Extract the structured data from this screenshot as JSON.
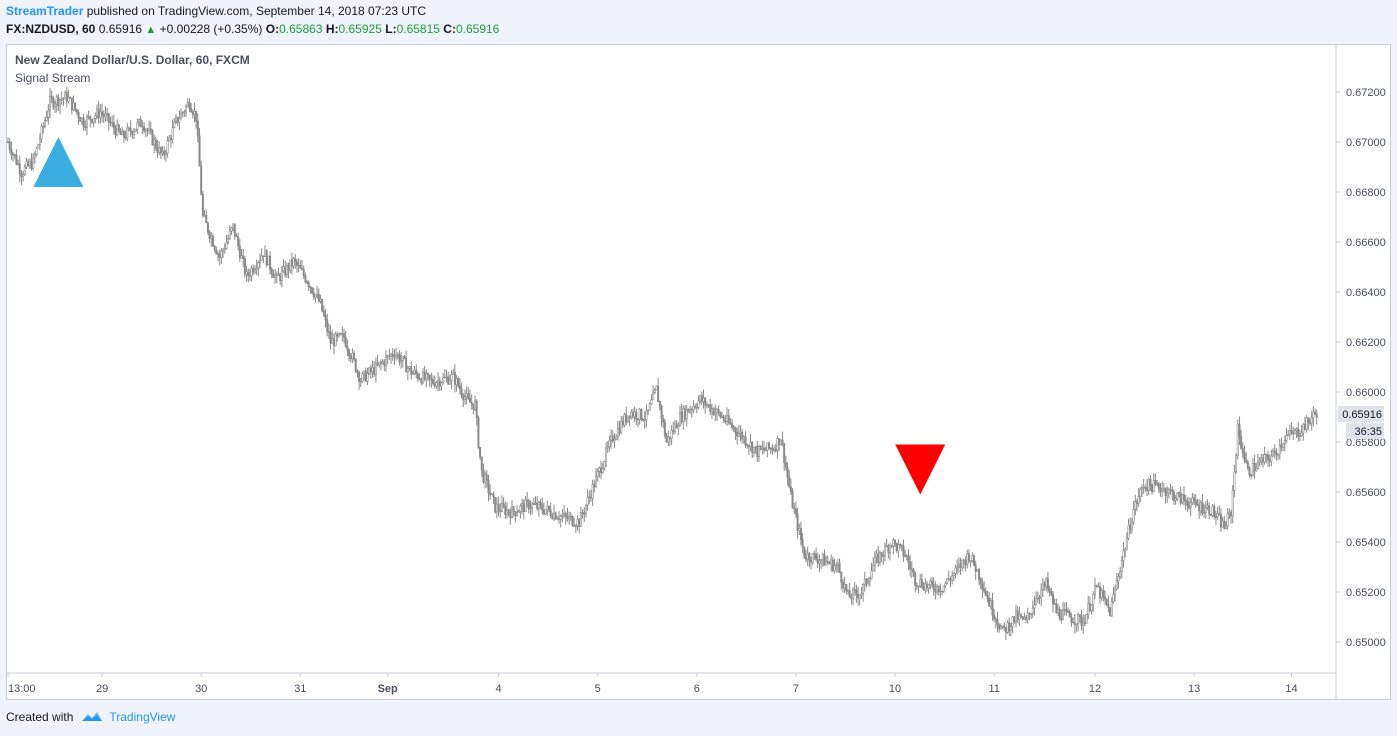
{
  "header": {
    "author": "StreamTrader",
    "published_text": "published on TradingView.com, September 14, 2018 07:23 UTC",
    "symbol": "FX:NZDUSD, 60",
    "last": "0.65916",
    "change": "+0.00228 (+0.35%)",
    "o_label": "O:",
    "o_value": "0.65863",
    "h_label": "H:",
    "h_value": "0.65925",
    "l_label": "L:",
    "l_value": "0.65815",
    "c_label": "C:",
    "c_value": "0.65916"
  },
  "legend": {
    "title": "New Zealand Dollar/U.S. Dollar, 60, FXCM",
    "indicator": "Signal Stream"
  },
  "footer": {
    "created_with": "Created with",
    "brand": "TradingView"
  },
  "colors": {
    "candle": "#8a8a8a",
    "buy_signal": "#3aaee0",
    "sell_signal": "#ff0000"
  },
  "chart_data": {
    "type": "candlestick",
    "symbol": "FX:NZDUSD",
    "interval": "60",
    "x_tick_labels": [
      "13:00",
      "29",
      "30",
      "31",
      "Sep",
      "4",
      "5",
      "6",
      "7",
      "10",
      "11",
      "12",
      "13",
      "14"
    ],
    "y_tick_labels": [
      "0.67200",
      "0.67000",
      "0.66800",
      "0.66600",
      "0.66400",
      "0.66200",
      "0.66000",
      "0.65800",
      "0.65600",
      "0.65400",
      "0.65200",
      "0.65000"
    ],
    "y_ticks": [
      0.672,
      0.67,
      0.668,
      0.666,
      0.664,
      0.662,
      0.66,
      0.658,
      0.656,
      0.654,
      0.652,
      0.65
    ],
    "ylim": [
      0.6486,
      0.674
    ],
    "last_price_label": "0.65916",
    "countdown_label": "36:35",
    "grid": false,
    "close_path": [
      {
        "x": 0,
        "y": 0.67
      },
      {
        "x": 8,
        "y": 0.6688
      },
      {
        "x": 15,
        "y": 0.6692
      },
      {
        "x": 25,
        "y": 0.6716
      },
      {
        "x": 35,
        "y": 0.6718
      },
      {
        "x": 45,
        "y": 0.6708
      },
      {
        "x": 55,
        "y": 0.6712
      },
      {
        "x": 68,
        "y": 0.6702
      },
      {
        "x": 80,
        "y": 0.6708
      },
      {
        "x": 92,
        "y": 0.6694
      },
      {
        "x": 100,
        "y": 0.6708
      },
      {
        "x": 108,
        "y": 0.6716
      },
      {
        "x": 112,
        "y": 0.671
      },
      {
        "x": 116,
        "y": 0.667
      },
      {
        "x": 126,
        "y": 0.6654
      },
      {
        "x": 134,
        "y": 0.6666
      },
      {
        "x": 142,
        "y": 0.6646
      },
      {
        "x": 152,
        "y": 0.6656
      },
      {
        "x": 160,
        "y": 0.6645
      },
      {
        "x": 170,
        "y": 0.6652
      },
      {
        "x": 178,
        "y": 0.6645
      },
      {
        "x": 186,
        "y": 0.6635
      },
      {
        "x": 192,
        "y": 0.662
      },
      {
        "x": 200,
        "y": 0.6622
      },
      {
        "x": 210,
        "y": 0.6605
      },
      {
        "x": 220,
        "y": 0.661
      },
      {
        "x": 230,
        "y": 0.6616
      },
      {
        "x": 240,
        "y": 0.6608
      },
      {
        "x": 252,
        "y": 0.6604
      },
      {
        "x": 265,
        "y": 0.6606
      },
      {
        "x": 274,
        "y": 0.6596
      },
      {
        "x": 278,
        "y": 0.6595
      },
      {
        "x": 280,
        "y": 0.658
      },
      {
        "x": 282,
        "y": 0.6568
      },
      {
        "x": 290,
        "y": 0.6554
      },
      {
        "x": 300,
        "y": 0.6552
      },
      {
        "x": 310,
        "y": 0.6555
      },
      {
        "x": 320,
        "y": 0.6553
      },
      {
        "x": 330,
        "y": 0.655
      },
      {
        "x": 340,
        "y": 0.6548
      },
      {
        "x": 350,
        "y": 0.6565
      },
      {
        "x": 360,
        "y": 0.6582
      },
      {
        "x": 370,
        "y": 0.6592
      },
      {
        "x": 380,
        "y": 0.659
      },
      {
        "x": 386,
        "y": 0.6601
      },
      {
        "x": 392,
        "y": 0.658
      },
      {
        "x": 400,
        "y": 0.659
      },
      {
        "x": 412,
        "y": 0.6597
      },
      {
        "x": 425,
        "y": 0.659
      },
      {
        "x": 436,
        "y": 0.6583
      },
      {
        "x": 446,
        "y": 0.6576
      },
      {
        "x": 456,
        "y": 0.6578
      },
      {
        "x": 460,
        "y": 0.6582
      },
      {
        "x": 466,
        "y": 0.6558
      },
      {
        "x": 474,
        "y": 0.6535
      },
      {
        "x": 484,
        "y": 0.6533
      },
      {
        "x": 494,
        "y": 0.653
      },
      {
        "x": 500,
        "y": 0.6518
      },
      {
        "x": 508,
        "y": 0.652
      },
      {
        "x": 516,
        "y": 0.6532
      },
      {
        "x": 526,
        "y": 0.654
      },
      {
        "x": 534,
        "y": 0.6535
      },
      {
        "x": 540,
        "y": 0.6525
      },
      {
        "x": 548,
        "y": 0.6522
      },
      {
        "x": 556,
        "y": 0.6522
      },
      {
        "x": 564,
        "y": 0.6528
      },
      {
        "x": 572,
        "y": 0.6535
      },
      {
        "x": 578,
        "y": 0.6527
      },
      {
        "x": 584,
        "y": 0.6516
      },
      {
        "x": 592,
        "y": 0.6504
      },
      {
        "x": 600,
        "y": 0.651
      },
      {
        "x": 606,
        "y": 0.6508
      },
      {
        "x": 612,
        "y": 0.6518
      },
      {
        "x": 618,
        "y": 0.6523
      },
      {
        "x": 624,
        "y": 0.6512
      },
      {
        "x": 632,
        "y": 0.651
      },
      {
        "x": 640,
        "y": 0.6508
      },
      {
        "x": 648,
        "y": 0.6522
      },
      {
        "x": 656,
        "y": 0.6512
      },
      {
        "x": 662,
        "y": 0.653
      },
      {
        "x": 670,
        "y": 0.6553
      },
      {
        "x": 676,
        "y": 0.6563
      },
      {
        "x": 686,
        "y": 0.6562
      },
      {
        "x": 696,
        "y": 0.6558
      },
      {
        "x": 706,
        "y": 0.6555
      },
      {
        "x": 716,
        "y": 0.6553
      },
      {
        "x": 724,
        "y": 0.6546
      },
      {
        "x": 728,
        "y": 0.6552
      },
      {
        "x": 732,
        "y": 0.6585
      },
      {
        "x": 738,
        "y": 0.6568
      },
      {
        "x": 746,
        "y": 0.6572
      },
      {
        "x": 754,
        "y": 0.6575
      },
      {
        "x": 760,
        "y": 0.6582
      },
      {
        "x": 768,
        "y": 0.6584
      },
      {
        "x": 774,
        "y": 0.6588
      },
      {
        "x": 779,
        "y": 0.6592
      }
    ],
    "signals": [
      {
        "type": "buy",
        "x": 30,
        "y": 0.6682
      },
      {
        "type": "sell",
        "x": 543,
        "y": 0.6579
      }
    ]
  }
}
